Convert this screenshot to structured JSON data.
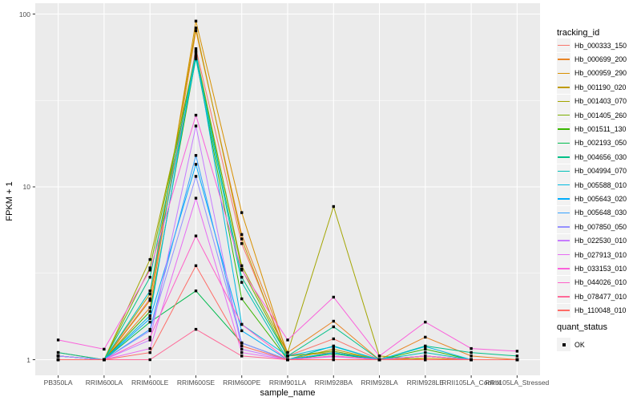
{
  "figure": {
    "background": "#FFFFFF",
    "panel_background": "#EBEBEB",
    "gridline_color": "#FFFFFF",
    "tick_color": "#333333",
    "tick_label_color": "#4D4D4D",
    "axis_title_color": "#000000",
    "legend_key_background": "#F2F2F2",
    "point_color": "#000000"
  },
  "chart_data": {
    "type": "line",
    "title": "",
    "xlabel": "sample_name",
    "ylabel": "FPKM + 1",
    "y_scale": "log10",
    "y_ticks": [
      1,
      10,
      100
    ],
    "y_minor_ticks": [
      3.1623,
      31.623
    ],
    "ylim": [
      0.88,
      112
    ],
    "grid": true,
    "legend_position": "right",
    "legend_title": "tracking_id",
    "point_shape": "filled-square",
    "categories": [
      "PB350LA",
      "RRIM600LA",
      "RRIM600LE",
      "RRIM600SE",
      "RRIM600PE",
      "RRIM901LA",
      "RRIM928BA",
      "RRIM928LA",
      "RRIM928LE",
      "RRII105LA_Control",
      "RRII105LA_Stressed"
    ],
    "series": [
      {
        "name": "Hb_000333_150",
        "color": "#F8766D",
        "values": [
          1.05,
          1.0,
          2.25,
          63,
          4.7,
          1.05,
          1.32,
          1.0,
          1.05,
          1.0,
          1.0
        ]
      },
      {
        "name": "Hb_000699_200",
        "color": "#E88526",
        "values": [
          1.1,
          1.0,
          2.0,
          80,
          5.3,
          1.1,
          1.67,
          1.0,
          1.35,
          1.05,
          1.0
        ]
      },
      {
        "name": "Hb_000959_290",
        "color": "#D89000",
        "values": [
          1.0,
          1.0,
          2.2,
          91,
          7.1,
          1.05,
          1.1,
          1.0,
          1.02,
          1.0,
          1.0
        ]
      },
      {
        "name": "Hb_001190_020",
        "color": "#C09B00",
        "values": [
          1.05,
          1.0,
          2.4,
          83,
          5.0,
          1.0,
          1.15,
          1.0,
          1.05,
          1.0,
          1.0
        ]
      },
      {
        "name": "Hb_001403_070",
        "color": "#A3A500",
        "values": [
          1.0,
          1.0,
          3.8,
          57,
          3.5,
          1.1,
          7.7,
          1.05,
          1.0,
          1.0,
          1.0
        ]
      },
      {
        "name": "Hb_001405_260",
        "color": "#7CAE00",
        "values": [
          1.05,
          1.0,
          3.4,
          60,
          3.35,
          1.05,
          1.12,
          1.0,
          1.05,
          1.0,
          1.0
        ]
      },
      {
        "name": "Hb_001511_130",
        "color": "#39B600",
        "values": [
          1.0,
          1.0,
          1.9,
          56,
          2.25,
          1.0,
          1.1,
          1.0,
          1.15,
          1.0,
          1.0
        ]
      },
      {
        "name": "Hb_002193_050",
        "color": "#00BB4E",
        "values": [
          1.05,
          1.0,
          1.65,
          2.5,
          1.25,
          1.0,
          1.08,
          1.0,
          1.0,
          1.0,
          1.0
        ]
      },
      {
        "name": "Hb_004656_030",
        "color": "#00C087",
        "values": [
          1.1,
          1.0,
          3.0,
          58,
          3.0,
          1.05,
          1.55,
          1.0,
          1.2,
          1.1,
          1.05
        ]
      },
      {
        "name": "Hb_004994_070",
        "color": "#00C0B8",
        "values": [
          1.05,
          1.0,
          2.5,
          55,
          2.8,
          1.0,
          1.2,
          1.0,
          1.1,
          1.0,
          1.0
        ]
      },
      {
        "name": "Hb_005588_010",
        "color": "#00BAE0",
        "values": [
          1.05,
          1.0,
          1.8,
          61,
          1.6,
          1.05,
          1.19,
          1.0,
          1.19,
          1.0,
          1.0
        ]
      },
      {
        "name": "Hb_005643_020",
        "color": "#00ACFC",
        "values": [
          1.0,
          1.0,
          1.73,
          13.5,
          1.47,
          1.0,
          1.1,
          1.0,
          1.05,
          1.0,
          1.0
        ]
      },
      {
        "name": "Hb_005648_030",
        "color": "#35A2FF",
        "values": [
          1.05,
          1.0,
          1.5,
          15.2,
          1.25,
          1.0,
          1.05,
          1.0,
          1.0,
          1.0,
          1.0
        ]
      },
      {
        "name": "Hb_007850_050",
        "color": "#9590FF",
        "values": [
          1.0,
          1.0,
          1.47,
          11.5,
          1.25,
          1.0,
          1.05,
          1.0,
          1.05,
          1.0,
          1.0
        ]
      },
      {
        "name": "Hb_022530_010",
        "color": "#C77CFF",
        "values": [
          1.05,
          1.0,
          1.3,
          22.5,
          1.15,
          1.0,
          1.04,
          1.0,
          1.0,
          1.0,
          1.0
        ]
      },
      {
        "name": "Hb_027913_010",
        "color": "#E76BF3",
        "values": [
          1.0,
          1.0,
          1.16,
          8.6,
          1.1,
          1.0,
          1.05,
          1.0,
          1.0,
          1.0,
          1.0
        ]
      },
      {
        "name": "Hb_033153_010",
        "color": "#FA62DB",
        "values": [
          1.3,
          1.15,
          3.3,
          26,
          3.3,
          1.3,
          2.3,
          1.05,
          1.65,
          1.16,
          1.12
        ]
      },
      {
        "name": "Hb_044026_010",
        "color": "#FF61C9",
        "values": [
          1.0,
          1.0,
          1.35,
          5.2,
          1.6,
          1.0,
          1.05,
          1.0,
          1.05,
          1.0,
          1.0
        ]
      },
      {
        "name": "Hb_078477_010",
        "color": "#FF6A98",
        "values": [
          1.0,
          1.0,
          1.0,
          1.5,
          1.05,
          1.0,
          1.0,
          1.0,
          1.0,
          1.0,
          1.0
        ]
      },
      {
        "name": "Hb_110048_010",
        "color": "#FF6C67",
        "values": [
          1.0,
          1.0,
          1.1,
          3.5,
          1.2,
          1.0,
          1.0,
          1.0,
          1.0,
          1.0,
          1.0
        ]
      }
    ],
    "quant_status": {
      "title": "quant_status",
      "items": [
        {
          "label": "OK",
          "marker": "black-square"
        }
      ]
    }
  }
}
